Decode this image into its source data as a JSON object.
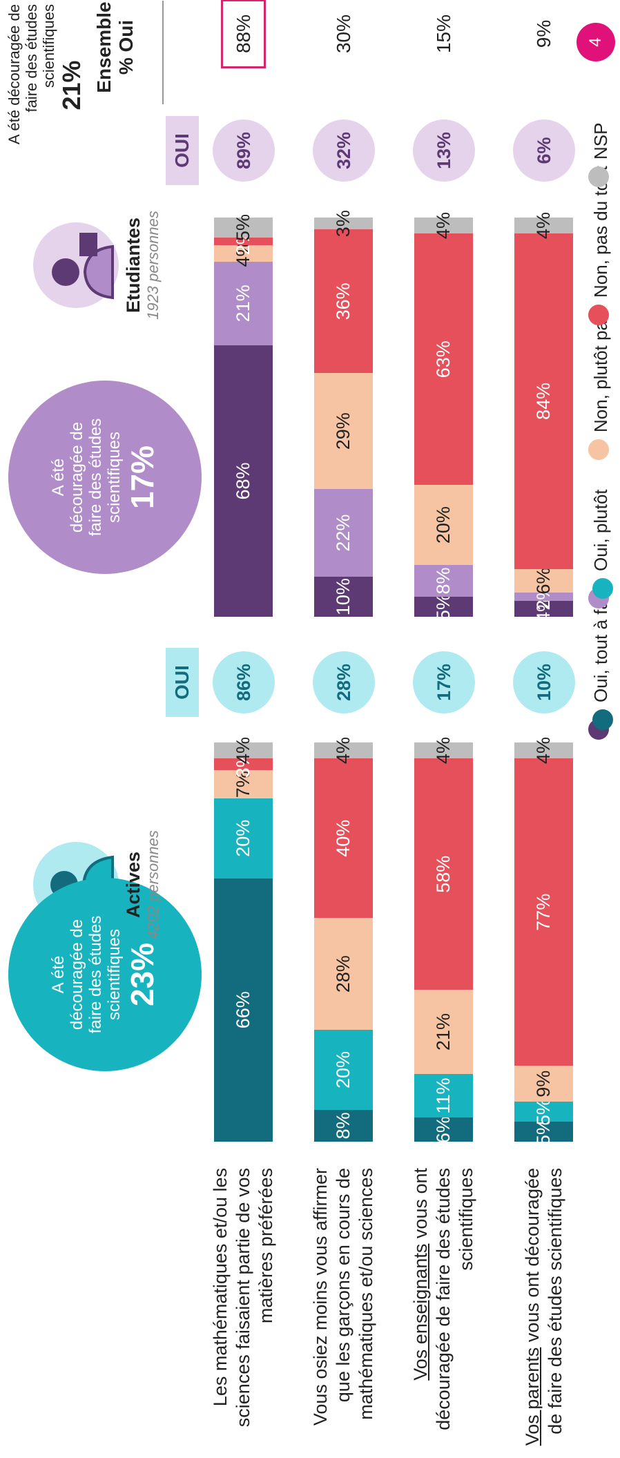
{
  "header": {
    "ensemble_title": "A été découragée de faire des études scientifiques",
    "ensemble_value": "21%",
    "ensemble_label_1": "Ensemble",
    "ensemble_label_2": "% Oui"
  },
  "questions": [
    {
      "parts": [
        {
          "text": "Les mathématiques et/ou les sciences faisaient partie de vos matières préférées",
          "underline": false
        }
      ]
    },
    {
      "parts": [
        {
          "text": "Vous osiez moins vous affirmer que les garçons en cours de mathématiques et/ou sciences",
          "underline": false
        }
      ]
    },
    {
      "parts": [
        {
          "text": "Vos enseignants",
          "underline": true
        },
        {
          "text": " vous ont découragée de faire des études scientifiques",
          "underline": false
        }
      ]
    },
    {
      "parts": [
        {
          "text": "Vos parents",
          "underline": true
        },
        {
          "text": " vous ont découragée de faire des études scientifiques",
          "underline": false
        }
      ]
    }
  ],
  "groups": [
    {
      "name": "Actives",
      "count": "4202 personnes",
      "circle_text": "A été découragée de faire des études scientifiques",
      "circle_value": "23%",
      "oui_header": "OUI",
      "circle_color": "#17b3bf",
      "light_color": "#aeeaf0",
      "text_color": "#136b7e",
      "colors": [
        "#136b7e",
        "#17b3bf",
        "#f6c3a3",
        "#e5505b",
        "#bdbdbd"
      ],
      "rows": [
        {
          "values": [
            66,
            20,
            7,
            3,
            4
          ],
          "value_labels": [
            "66%",
            "20%",
            "7%",
            "3%",
            "4%"
          ],
          "oui": "86%"
        },
        {
          "values": [
            8,
            20,
            28,
            40,
            4
          ],
          "value_labels": [
            "8%",
            "20%",
            "28%",
            "40%",
            "4%"
          ],
          "oui": "28%"
        },
        {
          "values": [
            6,
            11,
            21,
            58,
            4
          ],
          "value_labels": [
            "6%",
            "11%",
            "21%",
            "58%",
            "4%"
          ],
          "oui": "17%"
        },
        {
          "values": [
            5,
            5,
            9,
            77,
            4
          ],
          "value_labels": [
            "5%",
            "5%",
            "9%",
            "77%",
            "4%"
          ],
          "oui": "10%"
        }
      ]
    },
    {
      "name": "Etudiantes",
      "count": "1923 personnes",
      "circle_text": "A été découragée de faire des études scientifiques",
      "circle_value": "17%",
      "oui_header": "OUI",
      "circle_color": "#b08cc9",
      "light_color": "#e5d3ec",
      "text_color": "#5e3a74",
      "colors": [
        "#5e3a74",
        "#b08cc9",
        "#f6c3a3",
        "#e5505b",
        "#bdbdbd"
      ],
      "rows": [
        {
          "values": [
            68,
            21,
            4,
            2,
            5
          ],
          "value_labels": [
            "68%",
            "21%",
            "4%",
            "2%",
            "5%"
          ],
          "oui": "89%"
        },
        {
          "values": [
            10,
            22,
            29,
            36,
            3
          ],
          "value_labels": [
            "10%",
            "22%",
            "29%",
            "36%",
            "3%"
          ],
          "oui": "32%"
        },
        {
          "values": [
            5,
            8,
            20,
            63,
            4
          ],
          "value_labels": [
            "5%",
            "8%",
            "20%",
            "63%",
            "4%"
          ],
          "oui": "13%"
        },
        {
          "values": [
            4,
            2,
            6,
            84,
            4
          ],
          "value_labels": [
            "4%",
            "2%",
            "6%",
            "84%",
            "4%"
          ],
          "oui": "6%"
        }
      ]
    }
  ],
  "ensemble": [
    "88%",
    "30%",
    "15%",
    "9%"
  ],
  "legend": [
    {
      "name": "Oui, tout à fait",
      "colors": [
        "#5e3a74",
        "#136b7e"
      ]
    },
    {
      "name": "Oui, plutôt",
      "colors": [
        "#b08cc9",
        "#17b3bf"
      ]
    },
    {
      "name": "Non, plutôt pas",
      "colors": [
        "#f6c3a3"
      ]
    },
    {
      "name": "Non, pas du tout",
      "colors": [
        "#e5505b"
      ]
    },
    {
      "name": "NSP",
      "colors": [
        "#bdbdbd"
      ]
    }
  ],
  "page_number": "4"
}
